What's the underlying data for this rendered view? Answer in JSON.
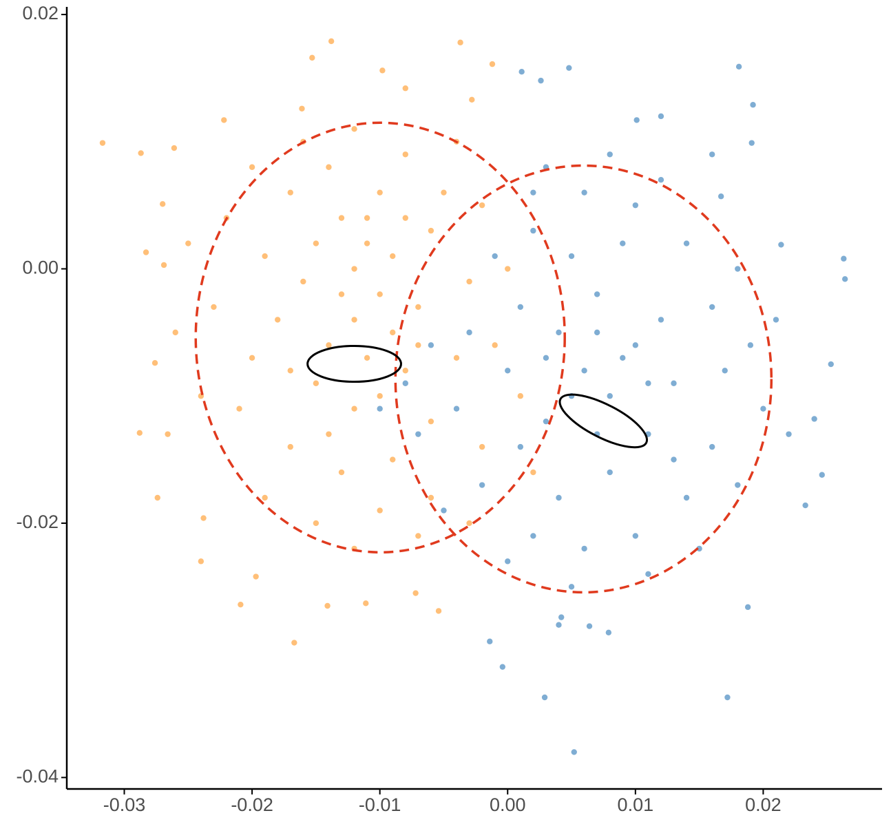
{
  "chart_data": {
    "type": "scatter",
    "xlim": [
      -0.0345,
      0.0293
    ],
    "ylim": [
      -0.0409,
      0.0206
    ],
    "xticks": [
      {
        "value": -0.03,
        "label": "-0.03"
      },
      {
        "value": -0.02,
        "label": "-0.02"
      },
      {
        "value": -0.01,
        "label": "-0.01"
      },
      {
        "value": 0,
        "label": "0.00"
      },
      {
        "value": 0.01,
        "label": "0.01"
      },
      {
        "value": 0.02,
        "label": "0.02"
      }
    ],
    "yticks": [
      {
        "value": 0.02,
        "label": "0.02"
      },
      {
        "value": 0,
        "label": "0.00"
      },
      {
        "value": -0.02,
        "label": "-0.02"
      },
      {
        "value": -0.04,
        "label": "-0.04"
      }
    ],
    "grid": false,
    "series": [
      {
        "color": "#ffbf78",
        "x": [
          -0.0317,
          -0.0287,
          -0.0283,
          -0.0288,
          -0.0274,
          -0.0238,
          -0.024,
          -0.0209,
          -0.0167,
          -0.0138,
          -0.0153,
          -0.0037,
          -0.0012,
          -0.0098,
          -0.0222,
          -0.0161,
          -0.0261,
          -0.027,
          -0.0269,
          -0.0276,
          -0.0266,
          -0.0197,
          -0.0141,
          -0.0111,
          -0.0072,
          -0.0054,
          -0.008,
          -0.0028,
          -0.012,
          -0.01,
          -0.014,
          -0.008,
          -0.016,
          -0.011,
          -0.013,
          -0.009,
          -0.015,
          -0.012,
          -0.018,
          -0.019,
          -0.007,
          -0.006,
          -0.01,
          -0.014,
          -0.017,
          -0.02,
          -0.021,
          -0.017,
          -0.013,
          -0.009,
          -0.006,
          -0.004,
          -0.003,
          -0.005,
          -0.008,
          -0.012,
          -0.016,
          -0.022,
          -0.023,
          -0.024,
          -0.019,
          -0.015,
          -0.01,
          -0.006,
          -0.002,
          -0.001,
          0.0,
          -0.002,
          -0.011,
          -0.013,
          -0.009,
          -0.012,
          -0.015,
          -0.01,
          -0.007,
          -0.017,
          -0.011,
          -0.008,
          -0.014,
          -0.02,
          -0.004,
          -0.007,
          -0.012,
          0.001,
          0.002,
          -0.026,
          -0.025,
          -0.003
        ],
        "values": [
          0.0099,
          0.0091,
          0.0013,
          -0.0129,
          -0.018,
          -0.0196,
          -0.023,
          -0.0264,
          -0.0294,
          0.0179,
          0.0166,
          0.0178,
          0.0161,
          0.0156,
          0.0117,
          0.0126,
          0.0095,
          0.0051,
          0.0003,
          -0.0074,
          -0.013,
          -0.0242,
          -0.0265,
          -0.0263,
          -0.0255,
          -0.0269,
          0.0142,
          0.0133,
          -0.004,
          -0.002,
          -0.006,
          -0.008,
          -0.001,
          0.002,
          0.004,
          0.001,
          -0.009,
          -0.011,
          -0.004,
          0.001,
          -0.003,
          0.003,
          0.006,
          0.008,
          0.006,
          -0.007,
          -0.011,
          -0.014,
          -0.016,
          -0.015,
          -0.012,
          -0.007,
          -0.001,
          0.006,
          0.009,
          0.011,
          0.01,
          0.004,
          -0.003,
          -0.01,
          -0.018,
          -0.02,
          -0.019,
          -0.018,
          -0.014,
          -0.006,
          0.0,
          0.005,
          -0.007,
          -0.002,
          -0.005,
          0.0,
          0.002,
          -0.01,
          -0.006,
          -0.008,
          0.004,
          0.004,
          -0.013,
          0.008,
          0.01,
          -0.021,
          -0.022,
          -0.01,
          -0.016,
          -0.005,
          0.002,
          -0.02
        ]
      },
      {
        "color": "#7fadd3",
        "x": [
          0.0048,
          0.0011,
          0.0181,
          0.0192,
          0.0263,
          0.0264,
          0.0253,
          0.0246,
          0.0172,
          0.0052,
          0.0029,
          -0.0004,
          -0.0014,
          0.0188,
          0.024,
          0.0233,
          0.0191,
          0.0167,
          0.0214,
          0.0064,
          0.0079,
          0.0042,
          0.0026,
          0.0101,
          0.006,
          0.004,
          0.008,
          0.01,
          0.003,
          0.007,
          0.005,
          0.009,
          0.012,
          0.013,
          0.011,
          0.008,
          0.004,
          0.001,
          0.0,
          0.001,
          0.002,
          0.006,
          0.01,
          0.014,
          0.016,
          0.017,
          0.016,
          0.014,
          0.01,
          0.006,
          0.002,
          -0.002,
          -0.004,
          -0.003,
          -0.001,
          0.003,
          0.008,
          0.012,
          0.018,
          0.019,
          0.02,
          0.018,
          0.015,
          0.011,
          0.005,
          0.0,
          -0.005,
          -0.007,
          -0.006,
          0.007,
          0.005,
          0.009,
          0.003,
          0.011,
          0.007,
          0.013,
          0.002,
          0.021,
          0.022,
          -0.008,
          -0.01,
          0.004,
          0.016,
          0.012
        ],
        "values": [
          0.0158,
          0.0155,
          0.0159,
          0.0129,
          0.0008,
          -0.0008,
          -0.0075,
          -0.0162,
          -0.0337,
          -0.038,
          -0.0337,
          -0.0313,
          -0.0293,
          -0.0266,
          -0.0118,
          -0.0186,
          0.0099,
          0.0057,
          0.0019,
          -0.0281,
          -0.0286,
          -0.0274,
          0.0148,
          0.0117,
          -0.008,
          -0.005,
          -0.01,
          -0.006,
          -0.012,
          -0.002,
          0.001,
          0.002,
          -0.004,
          -0.009,
          -0.013,
          -0.016,
          -0.018,
          -0.014,
          -0.008,
          -0.003,
          0.003,
          0.006,
          0.005,
          0.002,
          -0.003,
          -0.008,
          -0.014,
          -0.018,
          -0.021,
          -0.022,
          -0.021,
          -0.017,
          -0.011,
          -0.005,
          0.001,
          0.008,
          0.009,
          0.007,
          0.0,
          -0.006,
          -0.011,
          -0.017,
          -0.022,
          -0.024,
          -0.025,
          -0.023,
          -0.019,
          -0.013,
          -0.006,
          -0.013,
          -0.01,
          -0.007,
          -0.007,
          -0.009,
          -0.005,
          -0.015,
          0.006,
          -0.004,
          -0.013,
          -0.009,
          -0.011,
          -0.028,
          0.009,
          0.012
        ]
      }
    ],
    "ellipses": [
      {
        "cx": -0.00997,
        "cy": -0.0054,
        "rx": 0.01444,
        "ry": 0.01689,
        "angle": 0,
        "color": "#e03a1e",
        "dashed": true
      },
      {
        "cx": 0.00593,
        "cy": -0.00866,
        "rx": 0.01471,
        "ry": 0.01678,
        "angle": 0,
        "color": "#e03a1e",
        "dashed": true
      },
      {
        "cx": -0.012,
        "cy": -0.00747,
        "rx": 0.00366,
        "ry": 0.00141,
        "angle": 0,
        "color": "#000000",
        "dashed": false
      },
      {
        "cx": 0.00749,
        "cy": -0.01196,
        "rx": 0.00377,
        "ry": 0.0013,
        "angle": -27,
        "color": "#000000",
        "dashed": false
      }
    ]
  }
}
